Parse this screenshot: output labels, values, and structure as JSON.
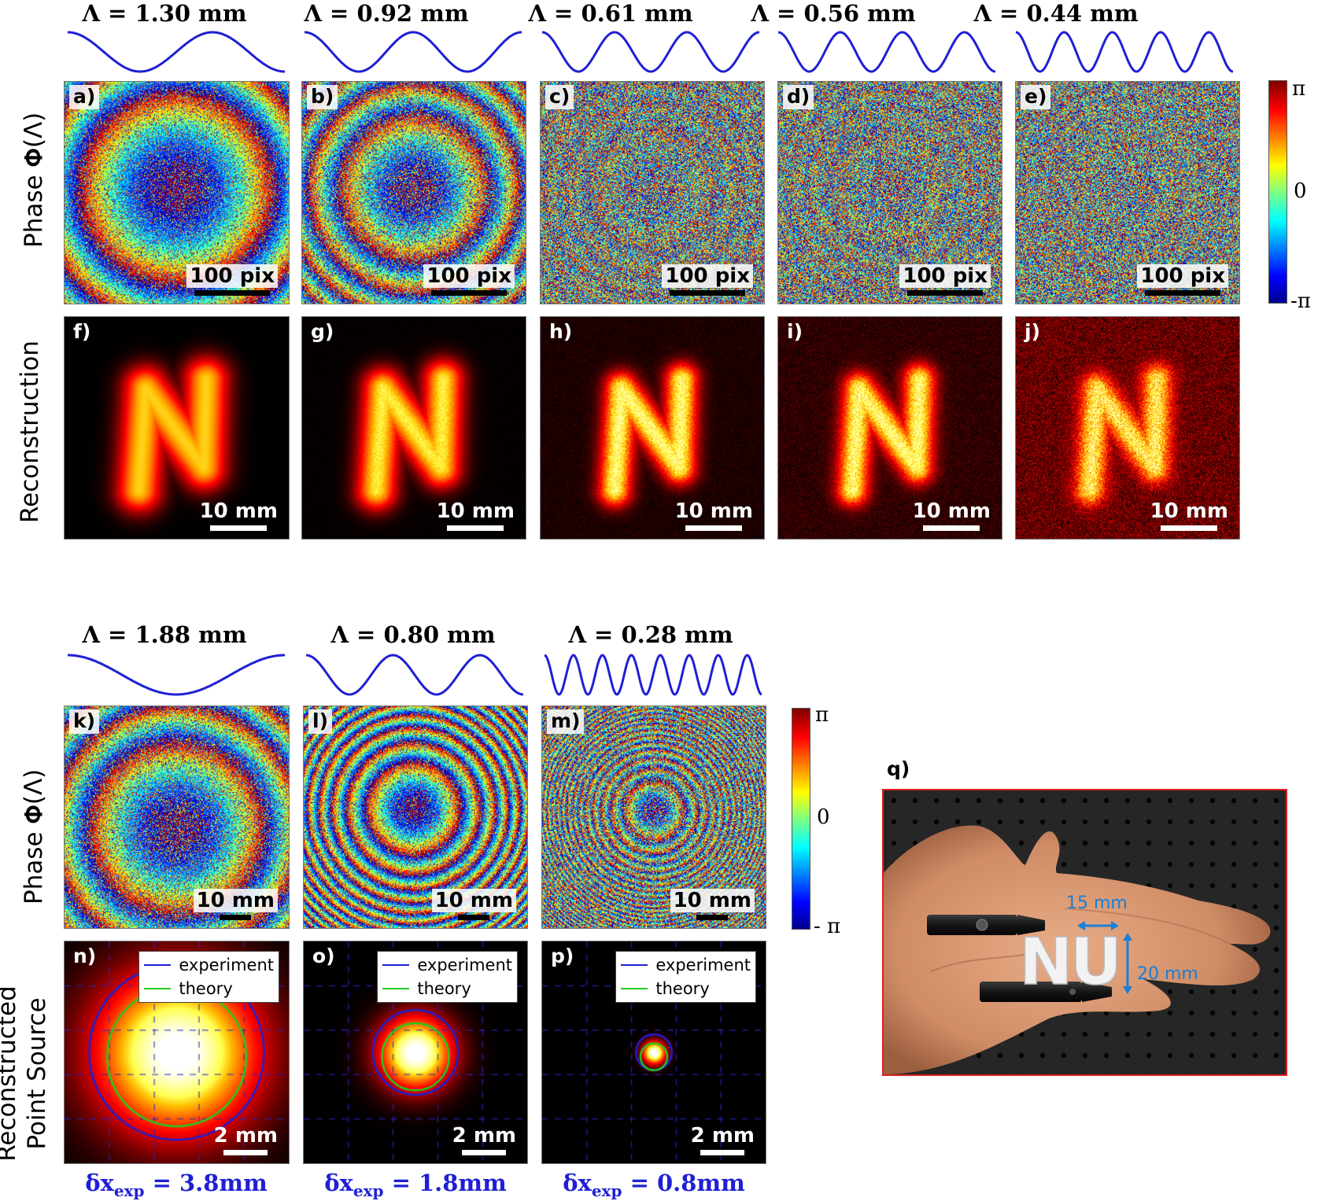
{
  "top": {
    "lambdas": [
      "Λ = 1.30 mm",
      "Λ = 0.92 mm",
      "Λ = 0.61 mm",
      "Λ = 0.56 mm",
      "Λ = 0.44 mm"
    ],
    "row1_label": "Phase 𝚽(Λ)",
    "row2_label": "Reconstruction",
    "phase_panels": [
      {
        "label": "a)",
        "scale": "100 pix"
      },
      {
        "label": "b)",
        "scale": "100 pix"
      },
      {
        "label": "c)",
        "scale": "100 pix"
      },
      {
        "label": "d)",
        "scale": "100 pix"
      },
      {
        "label": "e)",
        "scale": "100 pix"
      }
    ],
    "recon_panels": [
      {
        "label": "f)",
        "scale": "10 mm"
      },
      {
        "label": "g)",
        "scale": "10 mm"
      },
      {
        "label": "h)",
        "scale": "10 mm"
      },
      {
        "label": "i)",
        "scale": "10 mm"
      },
      {
        "label": "j)",
        "scale": "10 mm"
      }
    ],
    "colorbar": {
      "max": "π",
      "mid": "0",
      "min": "-π"
    }
  },
  "bottom": {
    "lambdas": [
      "Λ = 1.88 mm",
      "Λ = 0.80 mm",
      "Λ = 0.28 mm"
    ],
    "row1_label": "Phase 𝚽(Λ)",
    "row2_label_line1": "Reconstructed",
    "row2_label_line2": "Point Source",
    "phase_panels": [
      {
        "label": "k)",
        "scale": "10 mm"
      },
      {
        "label": "l)",
        "scale": "10 mm"
      },
      {
        "label": "m)",
        "scale": "10 mm"
      }
    ],
    "psf_panels": [
      {
        "label": "n)",
        "scale": "2 mm"
      },
      {
        "label": "o)",
        "scale": "2 mm"
      },
      {
        "label": "p)",
        "scale": "2 mm"
      }
    ],
    "legend": {
      "experiment": "experiment",
      "theory": "theory"
    },
    "colorbar": {
      "max": "π",
      "mid": "0",
      "min": "- π"
    },
    "resolution": [
      {
        "prefix": "δx",
        "sub": "exp",
        "value": " = 3.8mm"
      },
      {
        "prefix": "δx",
        "sub": "exp",
        "value": " = 1.8mm"
      },
      {
        "prefix": "δx",
        "sub": "exp",
        "value": " = 0.8mm"
      }
    ]
  },
  "photo": {
    "label": "q)",
    "letters": "NU",
    "dim_width": "15 mm",
    "dim_height": "20 mm",
    "frame_color": "#e02020"
  },
  "colors": {
    "wave": "#1f1fd6",
    "experiment": "#1f1fd6",
    "theory": "#22cc22"
  }
}
